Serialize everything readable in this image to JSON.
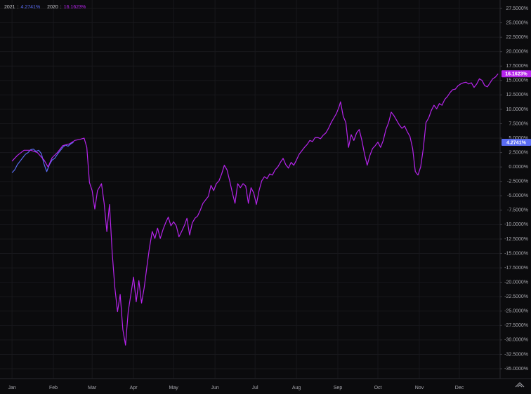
{
  "chart_data": {
    "type": "line",
    "legend_separator": ":",
    "xlim": [
      -8,
      366.5
    ],
    "ylim": [
      -37.5,
      27.5
    ],
    "xticks": [
      {
        "value": 1,
        "label": "Jan"
      },
      {
        "value": 32,
        "label": "Feb"
      },
      {
        "value": 61,
        "label": "Mar"
      },
      {
        "value": 92,
        "label": "Apr"
      },
      {
        "value": 122,
        "label": "May"
      },
      {
        "value": 153,
        "label": "Jun"
      },
      {
        "value": 183,
        "label": "Jul"
      },
      {
        "value": 214,
        "label": "Aug"
      },
      {
        "value": 245,
        "label": "Sep"
      },
      {
        "value": 275,
        "label": "Oct"
      },
      {
        "value": 306,
        "label": "Nov"
      },
      {
        "value": 336,
        "label": "Dec"
      }
    ],
    "yticks": [
      {
        "value": 27.5,
        "label": "27.5000%"
      },
      {
        "value": 25,
        "label": "25.0000%"
      },
      {
        "value": 22.5,
        "label": "22.5000%"
      },
      {
        "value": 20,
        "label": "20.0000%"
      },
      {
        "value": 17.5,
        "label": "17.5000%"
      },
      {
        "value": 15,
        "label": "15.0000%"
      },
      {
        "value": 12.5,
        "label": "12.5000%"
      },
      {
        "value": 10,
        "label": "10.0000%"
      },
      {
        "value": 7.5,
        "label": "7.5000%"
      },
      {
        "value": 5,
        "label": "5.0000%"
      },
      {
        "value": 2.5,
        "label": "2.5000%"
      },
      {
        "value": 0,
        "label": "0.0000%"
      },
      {
        "value": -2.5,
        "label": "-2.5000%"
      },
      {
        "value": -5,
        "label": "-5.0000%"
      },
      {
        "value": -7.5,
        "label": "-7.5000%"
      },
      {
        "value": -10,
        "label": "-10.0000%"
      },
      {
        "value": -12.5,
        "label": "-12.5000%"
      },
      {
        "value": -15,
        "label": "-15.0000%"
      },
      {
        "value": -17.5,
        "label": "-17.5000%"
      },
      {
        "value": -20,
        "label": "-20.0000%"
      },
      {
        "value": -22.5,
        "label": "-22.5000%"
      },
      {
        "value": -25,
        "label": "-25.0000%"
      },
      {
        "value": -27.5,
        "label": "-27.5000%"
      },
      {
        "value": -30,
        "label": "-30.0000%"
      },
      {
        "value": -32.5,
        "label": "-32.5000%"
      },
      {
        "value": -35,
        "label": "-35.0000%"
      }
    ],
    "grid": true,
    "series": [
      {
        "name": "2020",
        "color": "#b624ec",
        "last_label": "16.1623%",
        "x": [
          1,
          5,
          10,
          15,
          20,
          25,
          28,
          31,
          35,
          39,
          44,
          48,
          52,
          55,
          57,
          59,
          61,
          63,
          65,
          68,
          70,
          72,
          74,
          76,
          78,
          80,
          82,
          84,
          86,
          88,
          90,
          92,
          94,
          96,
          98,
          100,
          102,
          104,
          106,
          108,
          110,
          112,
          114,
          116,
          118,
          120,
          122,
          124,
          126,
          128,
          130,
          132,
          134,
          136,
          138,
          140,
          142,
          144,
          146,
          148,
          150,
          152,
          154,
          156,
          158,
          160,
          162,
          164,
          166,
          168,
          170,
          172,
          174,
          176,
          178,
          180,
          182,
          184,
          186,
          188,
          190,
          192,
          194,
          196,
          198,
          200,
          202,
          204,
          206,
          208,
          210,
          212,
          214,
          216,
          218,
          220,
          222,
          224,
          226,
          228,
          230,
          232,
          234,
          236,
          238,
          240,
          242,
          244,
          246,
          247,
          249,
          251,
          253,
          255,
          257,
          259,
          261,
          263,
          265,
          267,
          269,
          271,
          273,
          275,
          277,
          279,
          281,
          283,
          285,
          287,
          289,
          291,
          293,
          295,
          297,
          299,
          301,
          303,
          305,
          307,
          309,
          311,
          313,
          315,
          317,
          319,
          321,
          323,
          325,
          327,
          329,
          331,
          333,
          335,
          337,
          339,
          341,
          343,
          345,
          347,
          349,
          351,
          353,
          355,
          357,
          359,
          361,
          363,
          365
        ],
        "values": [
          1.0,
          2.0,
          2.9,
          2.9,
          2.5,
          1.2,
          0.0,
          1.6,
          2.5,
          3.7,
          4.0,
          4.6,
          4.8,
          5.0,
          3.4,
          -2.7,
          -4.1,
          -7.3,
          -4.1,
          -2.9,
          -6.3,
          -11.2,
          -6.5,
          -14.8,
          -20.9,
          -25.1,
          -22.1,
          -28.2,
          -30.9,
          -25.1,
          -22.1,
          -19.1,
          -23.4,
          -19.7,
          -23.6,
          -20.9,
          -17.3,
          -13.9,
          -11.2,
          -12.4,
          -10.6,
          -12.4,
          -10.9,
          -9.7,
          -8.7,
          -10.2,
          -9.5,
          -10.2,
          -12.1,
          -11.2,
          -10.2,
          -8.9,
          -11.8,
          -9.7,
          -8.9,
          -8.5,
          -7.5,
          -6.3,
          -5.7,
          -5.1,
          -3.2,
          -4.1,
          -2.9,
          -2.4,
          -1.2,
          0.3,
          -0.5,
          -2.4,
          -4.5,
          -6.3,
          -2.9,
          -3.6,
          -2.9,
          -3.3,
          -6.3,
          -3.6,
          -4.5,
          -6.5,
          -4.1,
          -2.4,
          -1.7,
          -2.0,
          -1.2,
          -1.4,
          -0.5,
          0.0,
          0.8,
          1.5,
          0.4,
          -0.2,
          0.8,
          0.3,
          1.2,
          2.2,
          2.8,
          3.4,
          3.9,
          4.6,
          4.4,
          5.1,
          5.1,
          4.9,
          5.5,
          5.9,
          6.7,
          7.7,
          8.5,
          9.3,
          10.5,
          11.3,
          8.8,
          7.7,
          3.4,
          5.6,
          4.6,
          5.9,
          6.5,
          4.6,
          2.2,
          0.3,
          2.0,
          3.2,
          3.7,
          4.3,
          3.4,
          4.6,
          6.5,
          7.7,
          9.5,
          8.9,
          8.1,
          7.3,
          6.7,
          7.1,
          6.1,
          5.3,
          3.2,
          -0.8,
          -1.4,
          0.0,
          3.2,
          7.7,
          8.5,
          9.8,
          10.7,
          10.1,
          11.0,
          10.7,
          11.7,
          12.2,
          12.9,
          13.4,
          13.5,
          14.1,
          14.4,
          14.6,
          14.7,
          14.4,
          14.6,
          13.8,
          14.4,
          15.3,
          15.0,
          14.1,
          13.9,
          14.6,
          15.3,
          15.6,
          16.1623
        ]
      },
      {
        "name": "2021",
        "color": "#5a6cf2",
        "last_label": "4.2741%",
        "x": [
          1,
          3,
          5,
          7,
          9,
          11,
          13,
          15,
          17,
          19,
          21,
          23,
          25,
          27,
          29,
          31,
          33,
          35,
          37,
          39,
          41,
          43,
          45,
          47
        ],
        "values": [
          -1.0,
          -0.5,
          0.4,
          1.0,
          1.6,
          2.2,
          2.5,
          3.0,
          3.1,
          2.7,
          2.9,
          2.3,
          0.5,
          -0.8,
          0.4,
          1.2,
          1.5,
          2.2,
          2.8,
          3.4,
          3.8,
          3.6,
          4.0,
          4.2741
        ]
      }
    ]
  }
}
